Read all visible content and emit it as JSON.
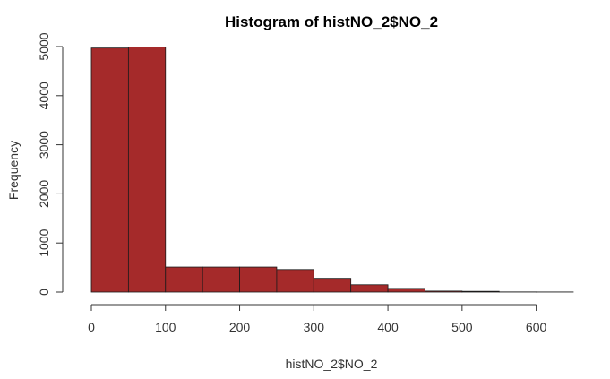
{
  "chart_data": {
    "type": "bar",
    "title": "Histogram of histNO_2$NO_2",
    "xlabel": "histNO_2$NO_2",
    "ylabel": "Frequency",
    "bins": [
      {
        "from": 0,
        "to": 50,
        "count": 4970
      },
      {
        "from": 50,
        "to": 100,
        "count": 4990
      },
      {
        "from": 100,
        "to": 150,
        "count": 510
      },
      {
        "from": 150,
        "to": 200,
        "count": 510
      },
      {
        "from": 200,
        "to": 250,
        "count": 510
      },
      {
        "from": 250,
        "to": 300,
        "count": 460
      },
      {
        "from": 300,
        "to": 350,
        "count": 280
      },
      {
        "from": 350,
        "to": 400,
        "count": 150
      },
      {
        "from": 400,
        "to": 450,
        "count": 75
      },
      {
        "from": 450,
        "to": 500,
        "count": 20
      },
      {
        "from": 500,
        "to": 550,
        "count": 15
      },
      {
        "from": 550,
        "to": 600,
        "count": 3
      },
      {
        "from": 600,
        "to": 650,
        "count": 2
      }
    ],
    "xlim": [
      0,
      650
    ],
    "ylim": [
      0,
      5000
    ],
    "x_ticks": [
      0,
      100,
      200,
      300,
      400,
      500,
      600
    ],
    "y_ticks": [
      0,
      1000,
      2000,
      3000,
      4000,
      5000
    ],
    "bar_color": "#a52a2a",
    "grid": false,
    "legend": "none"
  }
}
